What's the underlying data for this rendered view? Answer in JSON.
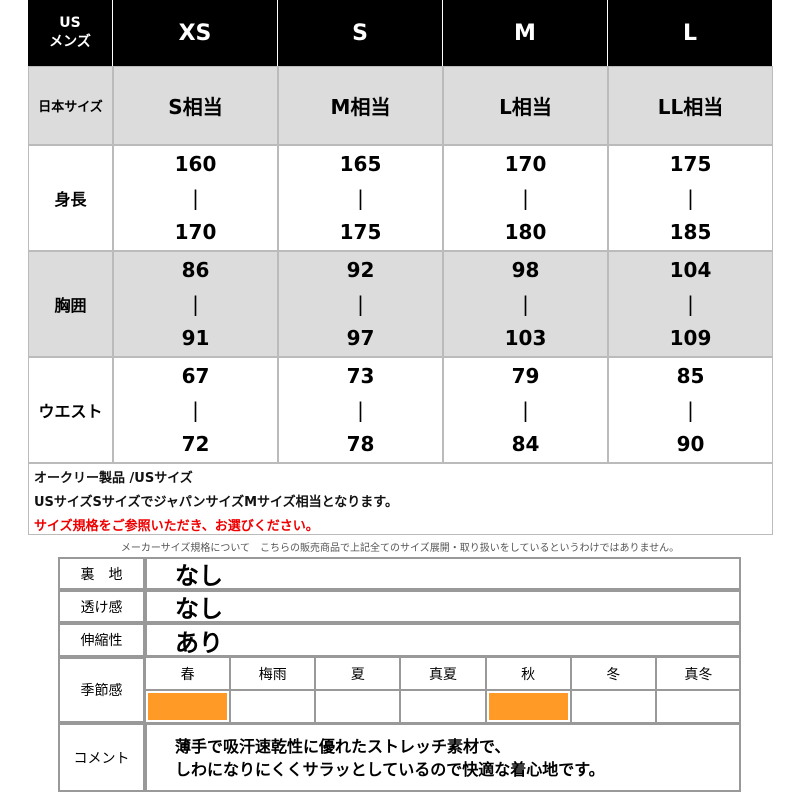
{
  "size_table": {
    "header_label": [
      "US",
      "メンズ"
    ],
    "columns": [
      "XS",
      "S",
      "M",
      "L"
    ],
    "japan_label": "日本サイズ",
    "japan": [
      "S相当",
      "M相当",
      "L相当",
      "LL相当"
    ],
    "rows": [
      {
        "label": "身長",
        "cells": [
          [
            "160",
            "|",
            "170"
          ],
          [
            "165",
            "|",
            "175"
          ],
          [
            "170",
            "|",
            "180"
          ],
          [
            "175",
            "|",
            "185"
          ]
        ]
      },
      {
        "label": "胸囲",
        "cells": [
          [
            "86",
            "|",
            "91"
          ],
          [
            "92",
            "|",
            "97"
          ],
          [
            "98",
            "|",
            "103"
          ],
          [
            "104",
            "|",
            "109"
          ]
        ]
      },
      {
        "label": "ウエスト",
        "cells": [
          [
            "67",
            "|",
            "72"
          ],
          [
            "73",
            "|",
            "78"
          ],
          [
            "79",
            "|",
            "84"
          ],
          [
            "85",
            "|",
            "90"
          ]
        ]
      }
    ]
  },
  "notes": [
    "オークリー製品 /USサイズ",
    "USサイズSサイズでジャパンサイズMサイズ相当となります。",
    "サイズ規格をご参照いただき、お選びください。"
  ],
  "caption": "メーカーサイズ規格について　こちらの販売商品で上記全てのサイズ展開・取り扱いをしているというわけではありません。",
  "spec_table": {
    "rows": [
      {
        "label": "裏　地",
        "value": "なし"
      },
      {
        "label": "透け感",
        "value": "なし"
      },
      {
        "label": "伸縮性",
        "value": "あり"
      }
    ],
    "season_label": "季節感",
    "seasons": [
      {
        "name": "春",
        "active": true
      },
      {
        "name": "梅雨",
        "active": false
      },
      {
        "name": "夏",
        "active": false
      },
      {
        "name": "真夏",
        "active": false
      },
      {
        "name": "秋",
        "active": true
      },
      {
        "name": "冬",
        "active": false
      },
      {
        "name": "真冬",
        "active": false
      }
    ],
    "active_color": "#ff9a26",
    "comment_label": "コメント",
    "comment": [
      "薄手で吸汗速乾性に優れたストレッチ素材で、",
      "しわになりにくくサラッとしているので快適な着心地です。"
    ]
  }
}
